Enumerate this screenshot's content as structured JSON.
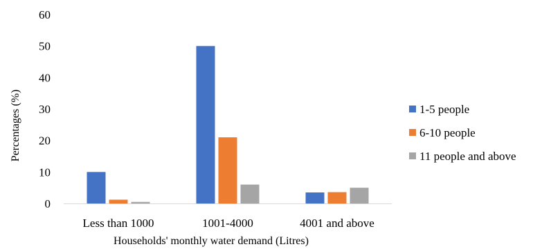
{
  "chart_data": {
    "type": "bar",
    "title": "",
    "xlabel": "Households' monthly water demand (Litres)",
    "ylabel": "Percentages (%)",
    "ylim": [
      0,
      60
    ],
    "yticks": [
      "0",
      "10",
      "20",
      "30",
      "40",
      "50",
      "60"
    ],
    "categories": [
      "Less than 1000",
      "1001-4000",
      "4001 and above"
    ],
    "series": [
      {
        "name": "1-5 people",
        "color": "#4472C4",
        "values": [
          10,
          50,
          3.5
        ]
      },
      {
        "name": "6-10 people",
        "color": "#ED7D31",
        "values": [
          1.2,
          21,
          3.6
        ]
      },
      {
        "name": "11 people and above",
        "color": "#A5A5A5",
        "values": [
          0.5,
          6,
          5
        ]
      }
    ],
    "grid": false,
    "legend_position": "right"
  }
}
